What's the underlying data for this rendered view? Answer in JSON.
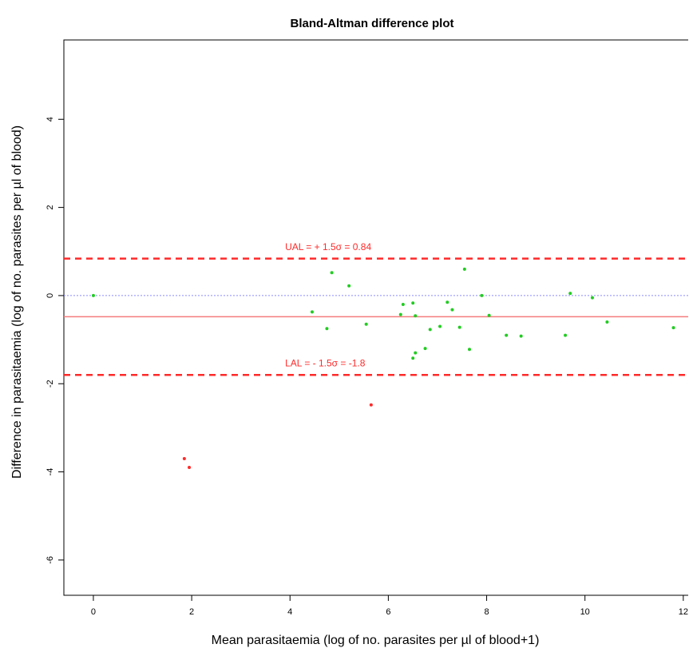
{
  "chart_data": {
    "type": "scatter",
    "title": "Bland-Altman difference plot",
    "xlabel": "Mean parasitaemia (log of no. parasites per µl of blood+1)",
    "ylabel": "Difference in parasitaemia (log of no. parasites per µl of blood)",
    "xlim": [
      -0.6,
      12.1
    ],
    "ylim": [
      -6.8,
      5.8
    ],
    "xticks": [
      0,
      2,
      4,
      6,
      8,
      10,
      12
    ],
    "yticks": [
      -6,
      -4,
      -2,
      0,
      2,
      4
    ],
    "ytick_labels": [
      "-6",
      "-4",
      "-2",
      "0",
      "2",
      "4"
    ],
    "grid": false,
    "colors": {
      "inlier": "#22cc22",
      "outlier": "#ff2a2a",
      "limit_line": "#ff2a2a",
      "mean_line": "#f47c7c",
      "zero_line": "#8a8aff"
    },
    "reference_lines": {
      "zero": 0,
      "mean_difference": -0.48,
      "upper_limit": 0.84,
      "lower_limit": -1.8
    },
    "annotations": [
      {
        "text": "UAL = + 1.5σ   = 0.84",
        "x": 3.9,
        "y": 1.03
      },
      {
        "text": "LAL = - 1.5σ   = -1.8",
        "x": 3.9,
        "y": -1.61
      }
    ],
    "series": [
      {
        "name": "",
        "color": "#22cc22",
        "points": [
          [
            0.0,
            0.0
          ],
          [
            4.45,
            -0.37
          ],
          [
            4.75,
            -0.75
          ],
          [
            4.85,
            0.52
          ],
          [
            5.2,
            0.22
          ],
          [
            5.55,
            -0.65
          ],
          [
            6.25,
            -0.43
          ],
          [
            6.3,
            -0.2
          ],
          [
            6.5,
            -0.17
          ],
          [
            6.55,
            -0.46
          ],
          [
            6.5,
            -1.42
          ],
          [
            6.55,
            -1.3
          ],
          [
            6.75,
            -1.2
          ],
          [
            6.85,
            -0.77
          ],
          [
            7.05,
            -0.7
          ],
          [
            7.2,
            -0.15
          ],
          [
            7.3,
            -0.32
          ],
          [
            7.45,
            -0.72
          ],
          [
            7.55,
            0.6
          ],
          [
            7.65,
            -1.22
          ],
          [
            7.9,
            0.0
          ],
          [
            8.05,
            -0.45
          ],
          [
            8.4,
            -0.9
          ],
          [
            8.7,
            -0.92
          ],
          [
            9.6,
            -0.9
          ],
          [
            9.7,
            0.05
          ],
          [
            10.15,
            -0.05
          ],
          [
            10.45,
            -0.6
          ],
          [
            11.8,
            -0.73
          ]
        ]
      },
      {
        "name": "",
        "color": "#ff2a2a",
        "points": [
          [
            1.85,
            -3.7
          ],
          [
            1.95,
            -3.9
          ],
          [
            5.65,
            -2.48
          ]
        ]
      }
    ]
  }
}
